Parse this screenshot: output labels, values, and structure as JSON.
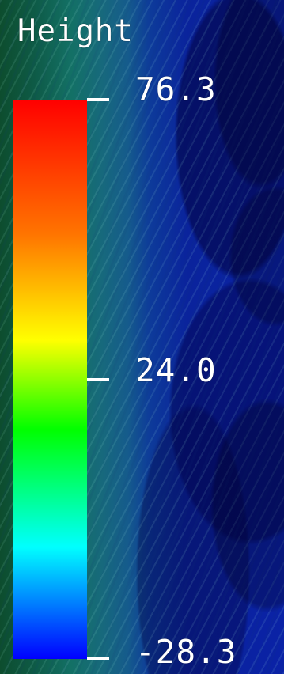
{
  "legend": {
    "title": "Height",
    "ticks": [
      {
        "label": "76.3"
      },
      {
        "label": "24.0"
      },
      {
        "label": "-28.3"
      }
    ]
  },
  "colorbar": {
    "colors": [
      "#ff0000",
      "#ff7400",
      "#ffff00",
      "#00ff00",
      "#00ffff",
      "#0000ff"
    ]
  }
}
